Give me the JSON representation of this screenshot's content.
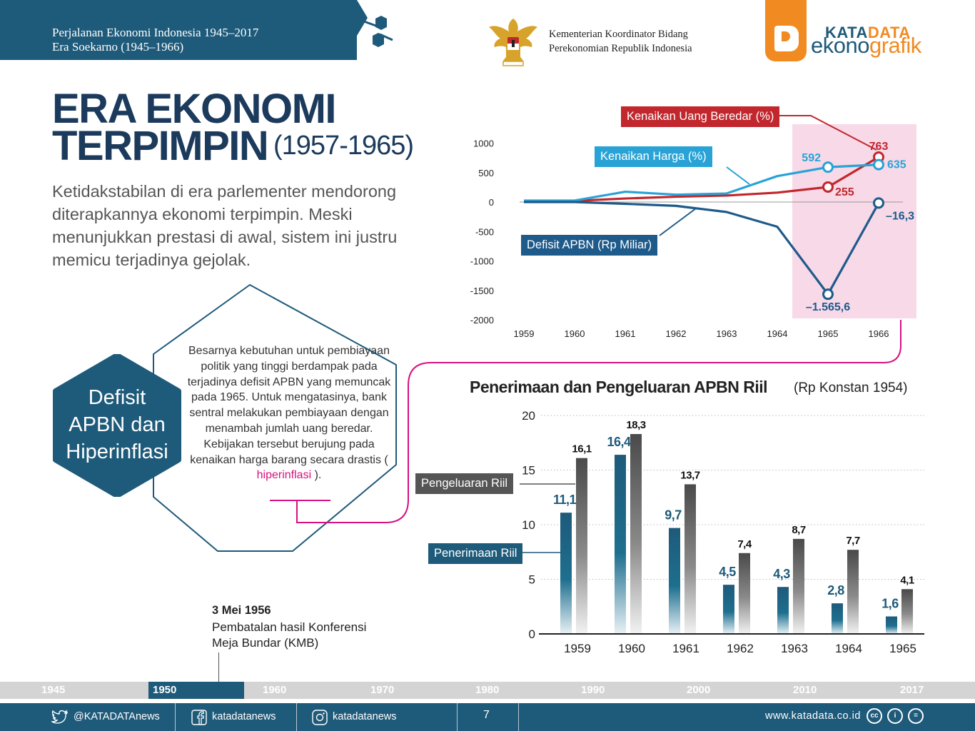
{
  "header": {
    "series_title": "Perjalanan Ekonomi Indonesia 1945–2017",
    "era_title": "Era Soekarno (1945–1966)",
    "ministry_line1": "Kementerian Koordinator Bidang",
    "ministry_line2": "Perekonomian Republik Indonesia",
    "logo_kata": "KATA",
    "logo_data": "DATA",
    "logo_ekono": "ekono",
    "logo_grafik": "grafik"
  },
  "main": {
    "title_line1": "ERA EKONOMI",
    "title_line2": "TERPIMPIN",
    "title_years": "(1957-1965)",
    "intro": "Ketidakstabilan di era parlementer mendorong diterapkannya ekonomi terpimpin. Meski menunjukkan prestasi di awal, sistem ini justru memicu terjadinya gejolak.",
    "section_label_line1": "Defisit",
    "section_label_line2": "APBN dan",
    "section_label_line3": "Hiperinflasi",
    "body_text": "Besarnya kebutuhan untuk pembiayaan politik yang tinggi berdampak pada terjadinya defisit APBN yang memuncak pada 1965. Untuk mengatasinya, bank sentral melakukan pembiayaan dengan menambah jumlah uang beredar. Kebijakan tersebut berujung pada kenaikan harga barang secara drastis (",
    "body_highlight": "hiperinflasi",
    "body_end": ")."
  },
  "event": {
    "date": "3 Mei 1956",
    "text_line1": "Pembatalan hasil Konferensi",
    "text_line2": "Meja Bundar (KMB)"
  },
  "timeline": {
    "labels": [
      "1945",
      "1950",
      "1960",
      "1970",
      "1980",
      "1990",
      "2000",
      "2010",
      "2017"
    ],
    "active": "1950"
  },
  "footer": {
    "twitter": "@KATADATAnews",
    "facebook": "katadatanews",
    "instagram": "katadatanews",
    "page": "7",
    "url": "www.katadata.co.id",
    "cc_marks": [
      "cc",
      "i",
      "="
    ]
  },
  "colors": {
    "navy": "#1e5a7a",
    "red": "#c1272d",
    "lightblue": "#29a3d6",
    "darkblue": "#1e5a8a",
    "pink_highlight": "#f7d9e8",
    "magenta": "#d6117f",
    "orange": "#f18a21",
    "gray": "#555555"
  },
  "chart_data": [
    {
      "type": "line",
      "title": "",
      "x": [
        "1959",
        "1960",
        "1961",
        "1962",
        "1963",
        "1964",
        "1965",
        "1966"
      ],
      "ylim": [
        -2000,
        1000
      ],
      "yticks": [
        "1000",
        "500",
        "0",
        "-500",
        "-1000",
        "-1500",
        "-2000"
      ],
      "highlight_range": [
        "1965",
        "1966"
      ],
      "series": [
        {
          "name": "Kenaikan Uang Beredar (%)",
          "color": "#c1272d",
          "values": [
            20,
            20,
            60,
            90,
            110,
            160,
            255,
            763
          ],
          "labels": {
            "1965": "255",
            "1966": "763"
          }
        },
        {
          "name": "Kenaikan Harga (%)",
          "color": "#29a3d6",
          "values": [
            25,
            25,
            175,
            125,
            145,
            440,
            592,
            635
          ],
          "labels": {
            "1965": "592",
            "1966": "635"
          }
        },
        {
          "name": "Defisit APBN (Rp Miliar)",
          "color": "#1e5a8a",
          "values": [
            0,
            0,
            -30,
            -65,
            -170,
            -420,
            -1565.6,
            -16.3
          ],
          "labels": {
            "1965": "–1.565,6",
            "1966": "–16,3"
          }
        }
      ]
    },
    {
      "type": "bar",
      "title": "Penerimaan dan Pengeluaran APBN Riil",
      "subtitle": "(Rp Konstan 1954)",
      "categories": [
        "1959",
        "1960",
        "1961",
        "1962",
        "1963",
        "1964",
        "1965"
      ],
      "ylim": [
        0,
        20
      ],
      "yticks": [
        "0",
        "5",
        "10",
        "15",
        "20"
      ],
      "series": [
        {
          "name": "Penerimaan Riil",
          "color": "#1e5a7a",
          "values": [
            11.1,
            16.4,
            9.7,
            4.5,
            4.3,
            2.8,
            1.6
          ],
          "labels": [
            "11,1",
            "16,4",
            "9,7",
            "4,5",
            "4,3",
            "2,8",
            "1,6"
          ]
        },
        {
          "name": "Pengeluaran Riil",
          "color": "#555555",
          "values": [
            16.1,
            18.3,
            13.7,
            7.4,
            8.7,
            7.7,
            4.1
          ],
          "labels": [
            "16,1",
            "18,3",
            "13,7",
            "7,4",
            "8,7",
            "7,7",
            "4,1"
          ]
        }
      ]
    }
  ]
}
